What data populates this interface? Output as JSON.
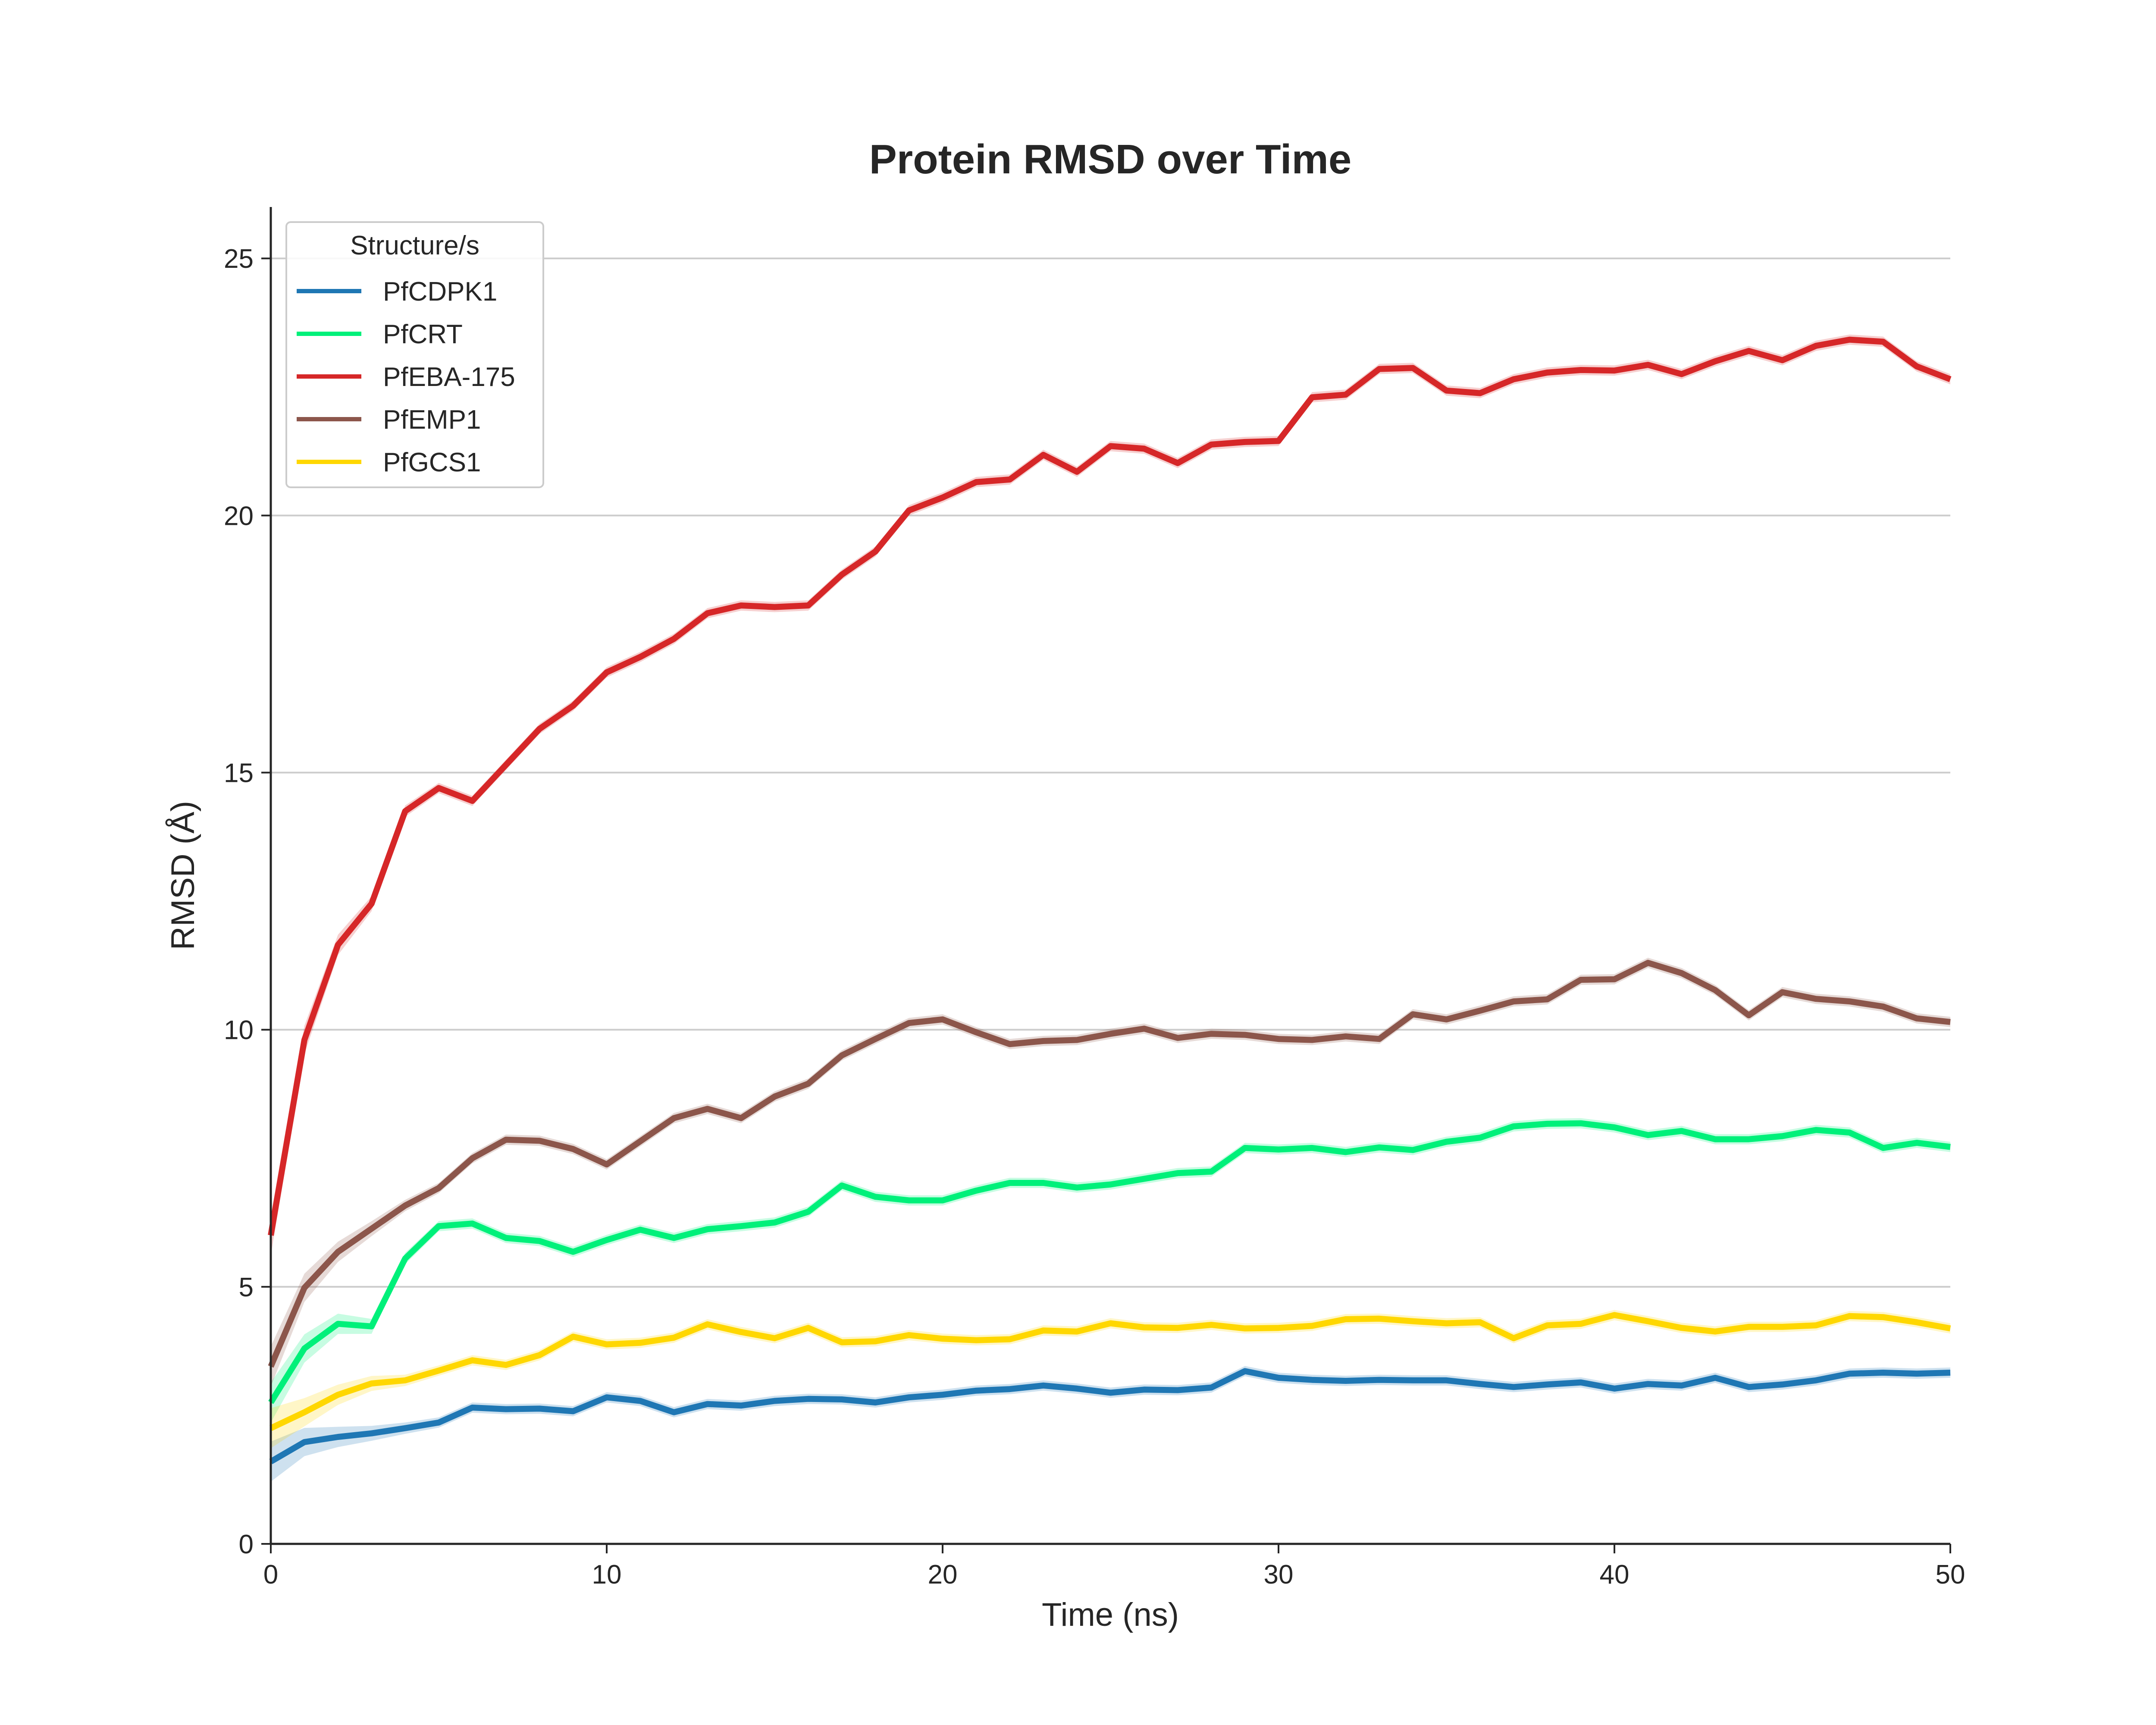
{
  "chart_data": {
    "type": "line",
    "title": "Protein RMSD over Time",
    "xlabel": "Time (ns)",
    "ylabel": "RMSD (Å)",
    "xlim": [
      0,
      50
    ],
    "ylim": [
      0,
      26
    ],
    "xticks": [
      0,
      10,
      20,
      30,
      40,
      50
    ],
    "yticks": [
      0,
      5,
      10,
      15,
      20,
      25
    ],
    "grid": "horizontal",
    "legend": {
      "title": "Structure/s",
      "placement": "top-left"
    },
    "x": [
      0,
      1,
      2,
      3,
      4,
      5,
      6,
      7,
      8,
      9,
      10,
      11,
      12,
      13,
      14,
      15,
      16,
      17,
      18,
      19,
      20,
      21,
      22,
      23,
      24,
      25,
      26,
      27,
      28,
      29,
      30,
      31,
      32,
      33,
      34,
      35,
      36,
      37,
      38,
      39,
      40,
      41,
      42,
      43,
      44,
      45,
      46,
      47,
      48,
      49,
      50
    ],
    "series": [
      {
        "name": "PfCDPK1",
        "color": "#1f77b4",
        "values": [
          1.6,
          1.98,
          2.08,
          2.15,
          2.25,
          2.36,
          2.65,
          2.62,
          2.63,
          2.58,
          2.85,
          2.78,
          2.56,
          2.72,
          2.69,
          2.78,
          2.82,
          2.81,
          2.75,
          2.85,
          2.9,
          2.98,
          3.01,
          3.08,
          3.02,
          2.94,
          3.0,
          2.99,
          3.04,
          3.36,
          3.23,
          3.19,
          3.17,
          3.19,
          3.18,
          3.18,
          3.11,
          3.05,
          3.1,
          3.14,
          3.02,
          3.11,
          3.08,
          3.23,
          3.05,
          3.1,
          3.18,
          3.31,
          3.33,
          3.31,
          3.33
        ]
      },
      {
        "name": "PfCRT",
        "color": "#00f07a",
        "values": [
          2.75,
          3.8,
          4.28,
          4.23,
          5.55,
          6.18,
          6.23,
          5.95,
          5.89,
          5.68,
          5.91,
          6.11,
          5.95,
          6.12,
          6.18,
          6.25,
          6.46,
          6.97,
          6.75,
          6.68,
          6.68,
          6.87,
          7.02,
          7.02,
          6.93,
          6.99,
          7.1,
          7.21,
          7.24,
          7.7,
          7.67,
          7.7,
          7.62,
          7.71,
          7.66,
          7.82,
          7.9,
          8.12,
          8.17,
          8.18,
          8.1,
          7.95,
          8.03,
          7.87,
          7.87,
          7.93,
          8.05,
          8.0,
          7.7,
          7.8,
          7.72
        ]
      },
      {
        "name": "PfEBA-175",
        "color": "#d62728",
        "values": [
          6.0,
          9.8,
          11.65,
          12.45,
          14.25,
          14.7,
          14.45,
          15.15,
          15.85,
          16.3,
          16.95,
          17.25,
          17.6,
          18.1,
          18.25,
          18.22,
          18.25,
          18.85,
          19.3,
          20.1,
          20.35,
          20.65,
          20.7,
          21.18,
          20.85,
          21.35,
          21.3,
          21.02,
          21.38,
          21.43,
          21.45,
          22.3,
          22.35,
          22.85,
          22.87,
          22.43,
          22.38,
          22.65,
          22.78,
          22.83,
          22.82,
          22.93,
          22.75,
          23.0,
          23.2,
          23.02,
          23.3,
          23.42,
          23.38,
          22.9,
          22.65
        ]
      },
      {
        "name": "PfEMP1",
        "color": "#8c564b",
        "values": [
          3.45,
          4.98,
          5.68,
          6.13,
          6.58,
          6.92,
          7.5,
          7.86,
          7.84,
          7.68,
          7.38,
          7.83,
          8.28,
          8.46,
          8.28,
          8.7,
          8.95,
          9.5,
          9.82,
          10.13,
          10.2,
          9.95,
          9.72,
          9.78,
          9.8,
          9.92,
          10.02,
          9.84,
          9.92,
          9.9,
          9.82,
          9.8,
          9.87,
          9.82,
          10.3,
          10.2,
          10.37,
          10.55,
          10.59,
          10.97,
          10.98,
          11.3,
          11.1,
          10.77,
          10.28,
          10.73,
          10.6,
          10.55,
          10.45,
          10.22,
          10.15
        ]
      },
      {
        "name": "PfGCS1",
        "color": "#ffd700",
        "values": [
          2.25,
          2.56,
          2.9,
          3.12,
          3.18,
          3.37,
          3.57,
          3.48,
          3.67,
          4.03,
          3.88,
          3.91,
          4.01,
          4.27,
          4.12,
          4.0,
          4.2,
          3.92,
          3.94,
          4.06,
          3.99,
          3.96,
          3.98,
          4.15,
          4.13,
          4.29,
          4.21,
          4.2,
          4.26,
          4.19,
          4.2,
          4.24,
          4.37,
          4.38,
          4.33,
          4.29,
          4.31,
          4.0,
          4.25,
          4.28,
          4.45,
          4.33,
          4.2,
          4.13,
          4.22,
          4.22,
          4.25,
          4.43,
          4.41,
          4.31,
          4.19
        ]
      }
    ]
  }
}
